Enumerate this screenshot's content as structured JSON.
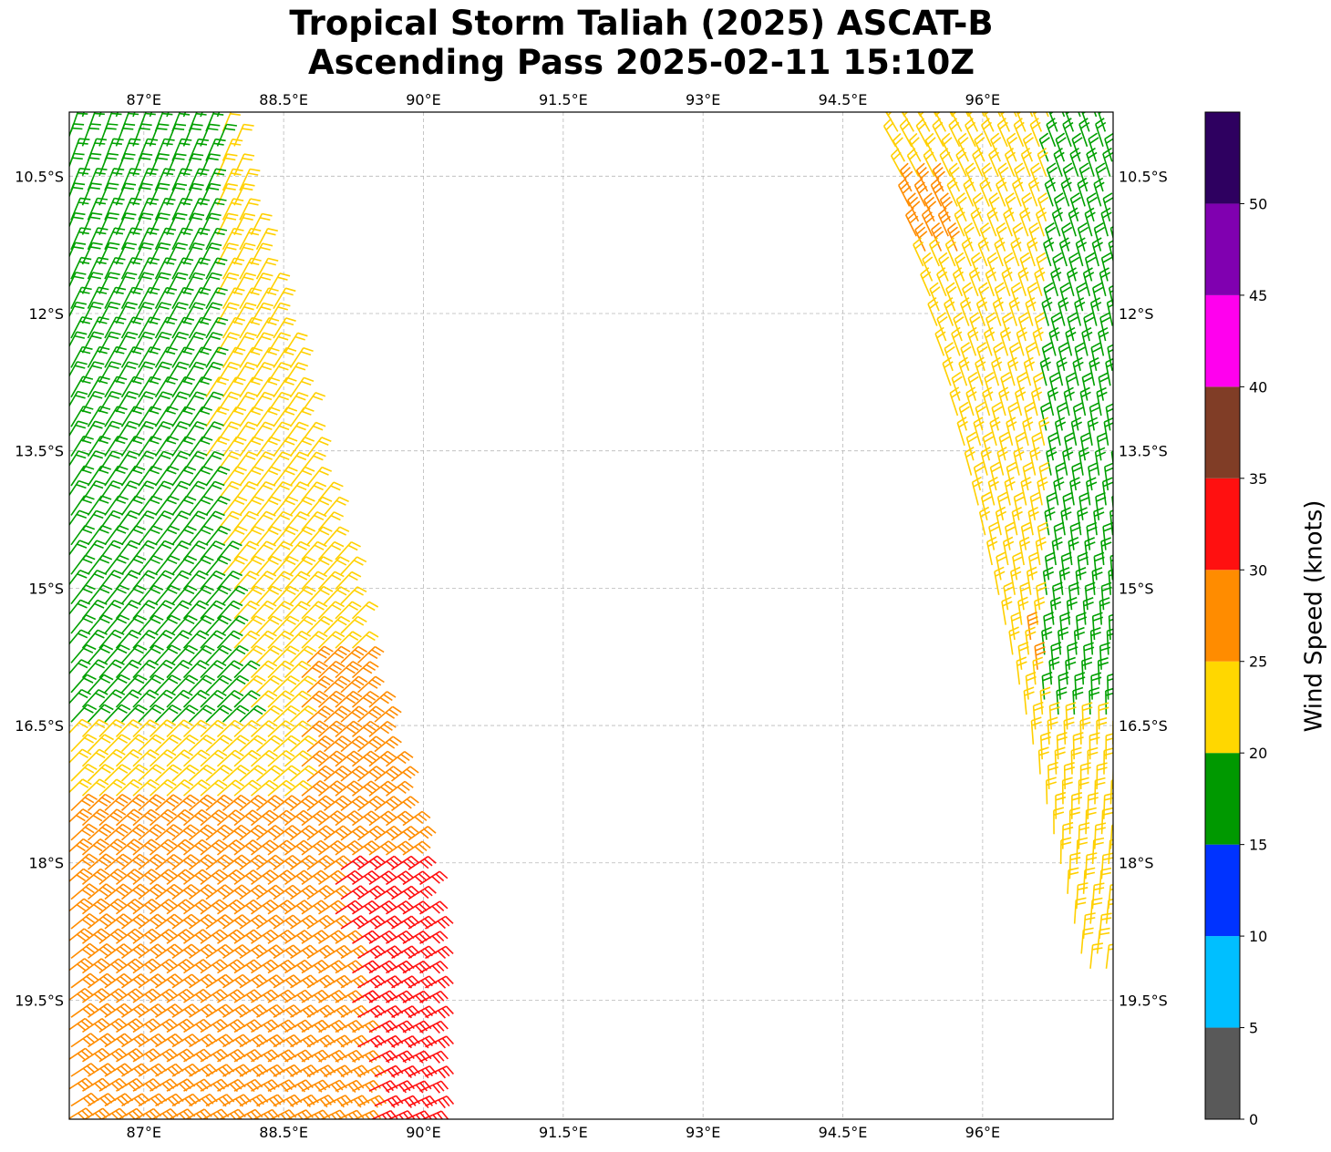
{
  "title": {
    "line1": "Tropical Storm Taliah (2025) ASCAT-B",
    "line2": "Ascending Pass 2025-02-11 15:10Z"
  },
  "map": {
    "lon_range": [
      86.2,
      97.4
    ],
    "lat_range": [
      -20.8,
      -9.8
    ],
    "lon_ticks": [
      {
        "value": 87,
        "label": "87°E"
      },
      {
        "value": 88.5,
        "label": "88.5°E"
      },
      {
        "value": 90,
        "label": "90°E"
      },
      {
        "value": 91.5,
        "label": "91.5°E"
      },
      {
        "value": 93,
        "label": "93°E"
      },
      {
        "value": 94.5,
        "label": "94.5°E"
      },
      {
        "value": 96,
        "label": "96°E"
      }
    ],
    "lat_ticks": [
      {
        "value": -10.5,
        "label": "10.5°S"
      },
      {
        "value": -12,
        "label": "12°S"
      },
      {
        "value": -13.5,
        "label": "13.5°S"
      },
      {
        "value": -15,
        "label": "15°S"
      },
      {
        "value": -16.5,
        "label": "16.5°S"
      },
      {
        "value": -18,
        "label": "18°S"
      },
      {
        "value": -19.5,
        "label": "19.5°S"
      }
    ],
    "gridlines": true
  },
  "colorbar": {
    "label": "Wind Speed (knots)",
    "bins": [
      {
        "from": 0,
        "to": 5,
        "color": "#595959"
      },
      {
        "from": 5,
        "to": 10,
        "color": "#00bfff"
      },
      {
        "from": 10,
        "to": 15,
        "color": "#0033ff"
      },
      {
        "from": 15,
        "to": 20,
        "color": "#009900"
      },
      {
        "from": 20,
        "to": 25,
        "color": "#ffd700"
      },
      {
        "from": 25,
        "to": 30,
        "color": "#ff8c00"
      },
      {
        "from": 30,
        "to": 35,
        "color": "#ff1010"
      },
      {
        "from": 35,
        "to": 40,
        "color": "#803d26"
      },
      {
        "from": 40,
        "to": 45,
        "color": "#ff00ee"
      },
      {
        "from": 45,
        "to": 50,
        "color": "#8000b0"
      },
      {
        "from": 50,
        "to": 55,
        "color": "#2e0060"
      }
    ],
    "tick_labels": [
      "0",
      "5",
      "10",
      "15",
      "20",
      "25",
      "30",
      "35",
      "40",
      "45",
      "50"
    ]
  }
}
